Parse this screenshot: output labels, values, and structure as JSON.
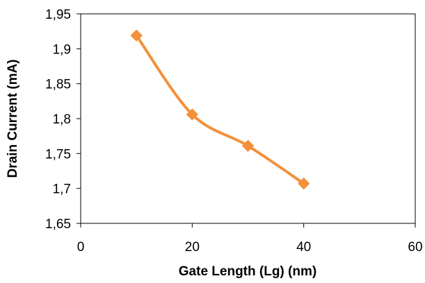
{
  "chart_data": {
    "type": "line",
    "title": "",
    "xlabel": "Gate Length (Lg) (nm)",
    "ylabel": "Drain Current (mA)",
    "xlim": [
      0,
      60
    ],
    "ylim": [
      1.65,
      1.95
    ],
    "x_ticks": [
      0,
      20,
      40,
      60
    ],
    "x_tick_labels": [
      "0",
      "20",
      "40",
      "60"
    ],
    "y_ticks": [
      1.65,
      1.7,
      1.75,
      1.8,
      1.85,
      1.9,
      1.95
    ],
    "y_tick_labels": [
      "1,65",
      "1,7",
      "1,75",
      "1,8",
      "1,85",
      "1,9",
      "1,95"
    ],
    "grid": false,
    "legend": "none",
    "smooth": true,
    "marker": "diamond",
    "color": "#F4903A",
    "series": [
      {
        "x": [
          10,
          20,
          30,
          40
        ],
        "values": [
          1.919,
          1.806,
          1.761,
          1.707
        ]
      }
    ]
  }
}
